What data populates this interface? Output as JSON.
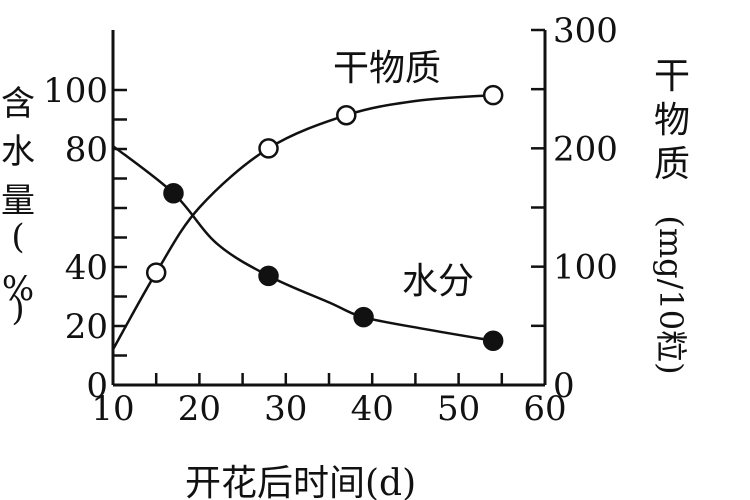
{
  "chart_data": {
    "type": "line",
    "xlabel": "开花后时间(d)",
    "x_ticks": [
      "10",
      "20",
      "30",
      "40",
      "50",
      "60"
    ],
    "xlim": [
      10,
      60
    ],
    "y_left": {
      "label_chars": [
        "含",
        "水",
        "量",
        "(",
        "%",
        ")"
      ],
      "ticks": [
        "0",
        "20",
        "40",
        "80",
        "100"
      ],
      "lim": [
        0,
        100
      ]
    },
    "y_right": {
      "label_chars": [
        "干",
        "物",
        "质",
        "(mg/10粒)"
      ],
      "ticks": [
        "0",
        "100",
        "200",
        "300"
      ],
      "lim": [
        0,
        300
      ]
    },
    "series": [
      {
        "name": "干物质",
        "axis": "right",
        "marker": "open-circle",
        "x": [
          15,
          28,
          37,
          54
        ],
        "y": [
          95,
          200,
          228,
          245
        ],
        "curve_x": [
          10,
          15,
          20,
          28,
          37,
          45,
          54
        ],
        "curve_y": [
          30,
          95,
          150,
          200,
          228,
          240,
          245
        ]
      },
      {
        "name": "水分",
        "axis": "left",
        "marker": "filled-circle",
        "x": [
          17,
          28,
          39,
          54
        ],
        "y": [
          65,
          37,
          23,
          15
        ],
        "curve_x": [
          10,
          17,
          22,
          28,
          35,
          39,
          46,
          54
        ],
        "curve_y": [
          81,
          65,
          48,
          37,
          28,
          23,
          19,
          15
        ]
      }
    ]
  }
}
